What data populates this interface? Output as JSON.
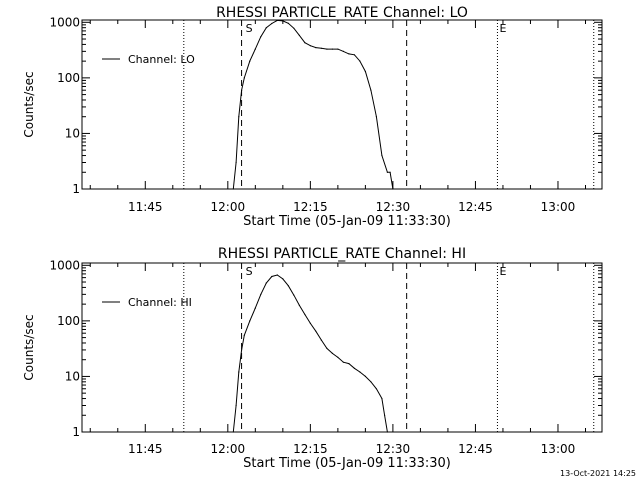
{
  "footer": {
    "timestamp": "13-Oct-2021 14:25"
  },
  "chart_data": [
    {
      "type": "line",
      "title": "RHESSI PARTICLE_RATE Channel: LO",
      "xlabel": "Start Time (05-Jan-09 11:33:30)",
      "ylabel": "Counts/sec",
      "x_unit": "minutes of day",
      "xlim": [
        "11:33:30",
        "13:08:00"
      ],
      "ylim": [
        1,
        1100
      ],
      "yscale": "log",
      "x_ticks": [
        "11:45",
        "12:00",
        "12:15",
        "12:30",
        "12:45",
        "13:00"
      ],
      "y_ticks": [
        "1",
        "10",
        "100",
        "1000"
      ],
      "legend": {
        "label": "Channel: LO",
        "position": "top-left"
      },
      "markers": {
        "start_label": "S",
        "end_label": "E"
      },
      "dashed_lines": [
        "12:02:30",
        "12:32:30"
      ],
      "dotted_lines": [
        "11:52:00",
        "12:49:00",
        "13:06:30"
      ],
      "series": [
        {
          "name": "Channel: LO",
          "x": [
            "12:01:00",
            "12:01:30",
            "12:02:00",
            "12:02:30",
            "12:03:00",
            "12:04:00",
            "12:05:00",
            "12:06:00",
            "12:07:00",
            "12:08:00",
            "12:09:00",
            "12:10:00",
            "12:11:00",
            "12:12:00",
            "12:13:00",
            "12:14:00",
            "12:15:00",
            "12:16:00",
            "12:17:00",
            "12:18:00",
            "12:19:00",
            "12:20:00",
            "12:21:00",
            "12:22:00",
            "12:23:00",
            "12:24:00",
            "12:25:00",
            "12:26:00",
            "12:27:00",
            "12:28:00",
            "12:29:00",
            "12:29:30",
            "12:30:00"
          ],
          "y": [
            1,
            3,
            20,
            60,
            100,
            200,
            330,
            550,
            800,
            950,
            1080,
            1060,
            960,
            780,
            580,
            430,
            380,
            350,
            340,
            330,
            330,
            330,
            300,
            270,
            260,
            200,
            130,
            60,
            20,
            4,
            2,
            2,
            1
          ]
        }
      ]
    },
    {
      "type": "line",
      "title": "RHESSI PARTICLE_RATE Channel: HI",
      "xlabel": "Start Time (05-Jan-09 11:33:30)",
      "ylabel": "Counts/sec",
      "x_unit": "minutes of day",
      "xlim": [
        "11:33:30",
        "13:08:00"
      ],
      "ylim": [
        1,
        1100
      ],
      "yscale": "log",
      "x_ticks": [
        "11:45",
        "12:00",
        "12:15",
        "12:30",
        "12:45",
        "13:00"
      ],
      "y_ticks": [
        "1",
        "10",
        "100",
        "1000"
      ],
      "legend": {
        "label": "Channel: HI",
        "position": "top-left"
      },
      "markers": {
        "start_label": "S",
        "end_label": "E"
      },
      "dashed_lines": [
        "12:02:30",
        "12:32:30"
      ],
      "dotted_lines": [
        "11:52:00",
        "12:49:00",
        "13:06:30"
      ],
      "series": [
        {
          "name": "Channel: HI",
          "x": [
            "12:01:00",
            "12:01:30",
            "12:02:00",
            "12:02:30",
            "12:03:00",
            "12:04:00",
            "12:05:00",
            "12:06:00",
            "12:07:00",
            "12:08:00",
            "12:09:00",
            "12:10:00",
            "12:11:00",
            "12:12:00",
            "12:13:00",
            "12:14:00",
            "12:15:00",
            "12:16:00",
            "12:17:00",
            "12:18:00",
            "12:19:00",
            "12:20:00",
            "12:21:00",
            "12:22:00",
            "12:23:00",
            "12:24:00",
            "12:25:00",
            "12:26:00",
            "12:27:00",
            "12:28:00",
            "12:28:30",
            "12:29:00"
          ],
          "y": [
            1,
            3,
            12,
            30,
            55,
            100,
            170,
            300,
            480,
            630,
            670,
            570,
            430,
            290,
            190,
            130,
            90,
            65,
            45,
            32,
            26,
            22,
            18,
            17,
            14,
            12,
            10,
            8,
            6,
            4,
            2,
            1
          ]
        }
      ]
    }
  ]
}
